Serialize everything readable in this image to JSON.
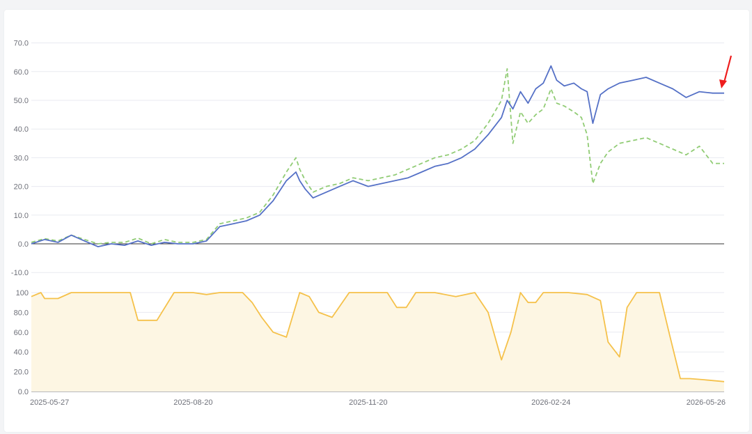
{
  "colors": {
    "series_primary": "#5470c6",
    "series_secondary": "#91cc75",
    "position": "#f5c14a",
    "position_fill": "#fdf6e3",
    "grid": "#e8eaf0",
    "axis": "#6e7079",
    "arrow": "#ee1d1d"
  },
  "chart_data": [
    {
      "type": "line",
      "title": "",
      "x_range": [
        "2025-05-27",
        "2026-05-26"
      ],
      "x_ticks": [
        "2025-05-27",
        "2025-08-20",
        "2025-11-20",
        "2026-02-24",
        "2026-05-26"
      ],
      "ylim": [
        -10,
        70
      ],
      "y_ticks": [
        "70.0",
        "60.0",
        "50.0",
        "40.0",
        "30.0",
        "20.0",
        "10.0",
        "0.0",
        "-10.0"
      ],
      "grid": true,
      "series": [
        {
          "style": "solid",
          "x": [
            "2025-05-27",
            "2025-06-03",
            "2025-06-10",
            "2025-06-17",
            "2025-06-24",
            "2025-07-01",
            "2025-07-08",
            "2025-07-15",
            "2025-07-22",
            "2025-07-29",
            "2025-08-05",
            "2025-08-12",
            "2025-08-20",
            "2025-08-27",
            "2025-09-03",
            "2025-09-10",
            "2025-09-17",
            "2025-09-24",
            "2025-10-01",
            "2025-10-08",
            "2025-10-13",
            "2025-10-15",
            "2025-10-18",
            "2025-10-22",
            "2025-10-29",
            "2025-11-05",
            "2025-11-12",
            "2025-11-20",
            "2025-11-27",
            "2025-12-04",
            "2025-12-11",
            "2025-12-18",
            "2025-12-25",
            "2026-01-01",
            "2026-01-08",
            "2026-01-15",
            "2026-01-22",
            "2026-01-29",
            "2026-02-01",
            "2026-02-04",
            "2026-02-08",
            "2026-02-12",
            "2026-02-16",
            "2026-02-20",
            "2026-02-24",
            "2026-02-27",
            "2026-03-03",
            "2026-03-08",
            "2026-03-12",
            "2026-03-15",
            "2026-03-18",
            "2026-03-22",
            "2026-03-26",
            "2026-04-01",
            "2026-04-08",
            "2026-04-15",
            "2026-04-22",
            "2026-04-29",
            "2026-05-06",
            "2026-05-13",
            "2026-05-20",
            "2026-05-26"
          ],
          "values": [
            0.0,
            1.5,
            0.5,
            3.0,
            1.0,
            -1.0,
            0.0,
            -0.5,
            1.0,
            -0.5,
            0.5,
            0.0,
            0.0,
            1.0,
            6.0,
            7.0,
            8.0,
            10.0,
            15.0,
            22.0,
            25.0,
            22.0,
            19.0,
            16.0,
            18.0,
            20.0,
            22.0,
            20.0,
            21.0,
            22.0,
            23.0,
            25.0,
            27.0,
            28.0,
            30.0,
            33.0,
            38.0,
            44.0,
            50.0,
            47.0,
            53.0,
            49.0,
            54.0,
            56.0,
            62.0,
            57.0,
            55.0,
            56.0,
            54.0,
            53.0,
            42.0,
            52.0,
            54.0,
            56.0,
            57.0,
            58.0,
            56.0,
            54.0,
            51.0,
            53.0,
            52.5,
            52.5
          ]
        },
        {
          "style": "dashed",
          "x": [
            "2025-05-27",
            "2025-06-03",
            "2025-06-10",
            "2025-06-17",
            "2025-06-24",
            "2025-07-01",
            "2025-07-08",
            "2025-07-15",
            "2025-07-22",
            "2025-07-29",
            "2025-08-05",
            "2025-08-12",
            "2025-08-20",
            "2025-08-27",
            "2025-09-03",
            "2025-09-10",
            "2025-09-17",
            "2025-09-24",
            "2025-10-01",
            "2025-10-08",
            "2025-10-13",
            "2025-10-15",
            "2025-10-18",
            "2025-10-22",
            "2025-10-29",
            "2025-11-05",
            "2025-11-12",
            "2025-11-20",
            "2025-11-27",
            "2025-12-04",
            "2025-12-11",
            "2025-12-18",
            "2025-12-25",
            "2026-01-01",
            "2026-01-08",
            "2026-01-15",
            "2026-01-22",
            "2026-01-29",
            "2026-02-01",
            "2026-02-04",
            "2026-02-08",
            "2026-02-12",
            "2026-02-16",
            "2026-02-20",
            "2026-02-24",
            "2026-02-27",
            "2026-03-03",
            "2026-03-08",
            "2026-03-12",
            "2026-03-15",
            "2026-03-18",
            "2026-03-22",
            "2026-03-26",
            "2026-04-01",
            "2026-04-08",
            "2026-04-15",
            "2026-04-22",
            "2026-04-29",
            "2026-05-06",
            "2026-05-13",
            "2026-05-20",
            "2026-05-26"
          ],
          "values": [
            0.5,
            1.8,
            1.0,
            3.0,
            1.5,
            0.0,
            0.5,
            0.5,
            2.0,
            0.0,
            1.5,
            0.5,
            0.5,
            1.5,
            7.0,
            8.0,
            9.0,
            11.0,
            17.0,
            25.0,
            30.0,
            26.0,
            22.0,
            18.0,
            20.0,
            21.0,
            23.0,
            22.0,
            23.0,
            24.0,
            26.0,
            28.0,
            30.0,
            31.0,
            33.0,
            36.0,
            42.0,
            50.0,
            61.0,
            35.0,
            46.0,
            42.0,
            45.0,
            47.0,
            54.0,
            49.0,
            48.0,
            46.0,
            44.0,
            38.0,
            21.0,
            28.0,
            32.0,
            35.0,
            36.0,
            37.0,
            35.0,
            33.0,
            31.0,
            34.0,
            28.0,
            28.0
          ]
        }
      ]
    },
    {
      "type": "area",
      "title": "",
      "x_range": [
        "2025-05-27",
        "2026-05-26"
      ],
      "ylim": [
        0,
        100
      ],
      "y_ticks": [
        "100",
        "80.0",
        "60.0",
        "40.0",
        "20.0",
        "0.0"
      ],
      "grid": true,
      "series": [
        {
          "x": [
            "2025-05-27",
            "2025-06-01",
            "2025-06-03",
            "2025-06-10",
            "2025-06-17",
            "2025-07-01",
            "2025-07-08",
            "2025-07-12",
            "2025-07-18",
            "2025-07-22",
            "2025-08-01",
            "2025-08-10",
            "2025-08-20",
            "2025-08-27",
            "2025-09-03",
            "2025-09-10",
            "2025-09-15",
            "2025-09-20",
            "2025-09-25",
            "2025-10-01",
            "2025-10-08",
            "2025-10-15",
            "2025-10-20",
            "2025-10-25",
            "2025-11-01",
            "2025-11-10",
            "2025-11-20",
            "2025-11-30",
            "2025-12-05",
            "2025-12-10",
            "2025-12-15",
            "2025-12-25",
            "2026-01-05",
            "2026-01-15",
            "2026-01-22",
            "2026-01-29",
            "2026-02-03",
            "2026-02-08",
            "2026-02-12",
            "2026-02-16",
            "2026-02-20",
            "2026-03-05",
            "2026-03-15",
            "2026-03-22",
            "2026-03-26",
            "2026-04-01",
            "2026-04-05",
            "2026-04-10",
            "2026-04-15",
            "2026-04-22",
            "2026-04-27",
            "2026-05-03",
            "2026-05-08",
            "2026-05-15",
            "2026-05-26"
          ],
          "values": [
            96,
            100,
            94,
            94,
            100,
            100,
            100,
            100,
            100,
            72,
            72,
            100,
            100,
            98,
            100,
            100,
            100,
            90,
            75,
            60,
            55,
            100,
            96,
            80,
            75,
            100,
            100,
            100,
            85,
            85,
            100,
            100,
            96,
            100,
            80,
            32,
            60,
            100,
            90,
            90,
            100,
            100,
            98,
            92,
            50,
            35,
            85,
            100,
            100,
            100,
            60,
            13,
            13,
            12,
            10
          ]
        }
      ]
    }
  ]
}
